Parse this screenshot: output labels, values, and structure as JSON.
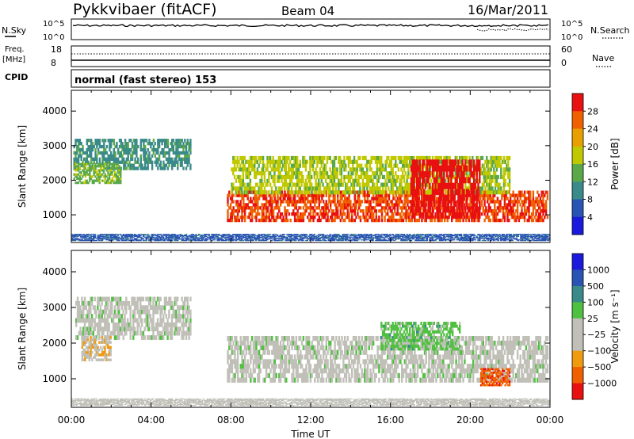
{
  "header": {
    "station": "Pykkvibaer (fitACF)",
    "beam": "Beam 04",
    "date": "16/Mar/2011"
  },
  "strip_labels": {
    "nsky": "N.Sky",
    "nsearch": "N.Search",
    "freq_line1": "Freq.",
    "freq_line2": "[MHz]",
    "nave": "Nave",
    "cpid": "CPID"
  },
  "strip_ticks": {
    "nsky_top": "10^5",
    "nsky_bottom": "10^0",
    "nsearch_top": "10^5",
    "nsearch_bottom": "10^0",
    "freq_top": "18",
    "freq_bottom": "8",
    "nave_top": "60",
    "nave_bottom": "0"
  },
  "cpid_text": "normal (fast stereo) 153",
  "colors": {
    "power_scale": [
      "#1a1adc",
      "#2a54b4",
      "#3a8a8a",
      "#5aa84a",
      "#c0c800",
      "#e8a000",
      "#f06000",
      "#e81010"
    ],
    "velocity_scale": [
      "#e81010",
      "#f06000",
      "#f09a10",
      "#c0c0b8",
      "#c0c0b8",
      "#50c040",
      "#3a8a8a",
      "#2a54b4",
      "#1a1adc"
    ],
    "ground_scatter": "#c0c0b8"
  },
  "chart_data": [
    {
      "type": "heatmap",
      "title": "",
      "xlabel": "Time UT",
      "ylabel": "Slant Range [km]",
      "x_ticks": [
        "00:00",
        "04:00",
        "08:00",
        "12:00",
        "16:00",
        "20:00",
        "00:00"
      ],
      "y_ticks": [
        "1000",
        "2000",
        "3000",
        "4000"
      ],
      "xlim_hours": [
        0,
        24
      ],
      "ylim_km": [
        200,
        4600
      ],
      "colorbar": {
        "label": "Power [dB]",
        "ticks": [
          "4",
          "8",
          "12",
          "16",
          "20",
          "24",
          "28"
        ],
        "range": [
          0,
          30
        ]
      },
      "bands": [
        {
          "t0": 0.1,
          "t1": 6.0,
          "r0": 2300,
          "r1": 3200,
          "value": 10
        },
        {
          "t0": 0.1,
          "t1": 2.5,
          "r0": 1900,
          "r1": 2500,
          "value": 14
        },
        {
          "t0": 7.8,
          "t1": 23.9,
          "r0": 800,
          "r1": 1700,
          "value": 26
        },
        {
          "t0": 8.0,
          "t1": 22.0,
          "r0": 1600,
          "r1": 2700,
          "value": 16
        },
        {
          "t0": 17.0,
          "t1": 20.5,
          "r0": 900,
          "r1": 2600,
          "value": 29
        },
        {
          "t0": 0.0,
          "t1": 24.0,
          "r0": 250,
          "r1": 450,
          "value": 6
        }
      ]
    },
    {
      "type": "heatmap",
      "title": "",
      "xlabel": "Time UT",
      "ylabel": "Slant Range [km]",
      "x_ticks": [
        "00:00",
        "04:00",
        "08:00",
        "12:00",
        "16:00",
        "20:00",
        "00:00"
      ],
      "y_ticks": [
        "1000",
        "2000",
        "3000",
        "4000"
      ],
      "xlim_hours": [
        0,
        24
      ],
      "ylim_km": [
        200,
        4600
      ],
      "colorbar": {
        "label": "Velocity [m s⁻¹]",
        "ticks": [
          "1000",
          "500",
          "100",
          "25",
          "−25",
          "−100",
          "−500",
          "−1000"
        ],
        "range": [
          -1000,
          1000
        ]
      },
      "bands": [
        {
          "t0": 0.2,
          "t1": 6.0,
          "r0": 2100,
          "r1": 3300,
          "value": 0
        },
        {
          "t0": 0.5,
          "t1": 2.0,
          "r0": 1500,
          "r1": 2200,
          "value": -300
        },
        {
          "t0": 7.8,
          "t1": 23.9,
          "r0": 900,
          "r1": 2200,
          "value": 0
        },
        {
          "t0": 15.5,
          "t1": 19.5,
          "r0": 1800,
          "r1": 2600,
          "value": 200
        },
        {
          "t0": 20.5,
          "t1": 22.0,
          "r0": 800,
          "r1": 1300,
          "value": -700
        },
        {
          "t0": 0.0,
          "t1": 24.0,
          "r0": 250,
          "r1": 450,
          "value": -50
        }
      ]
    }
  ]
}
